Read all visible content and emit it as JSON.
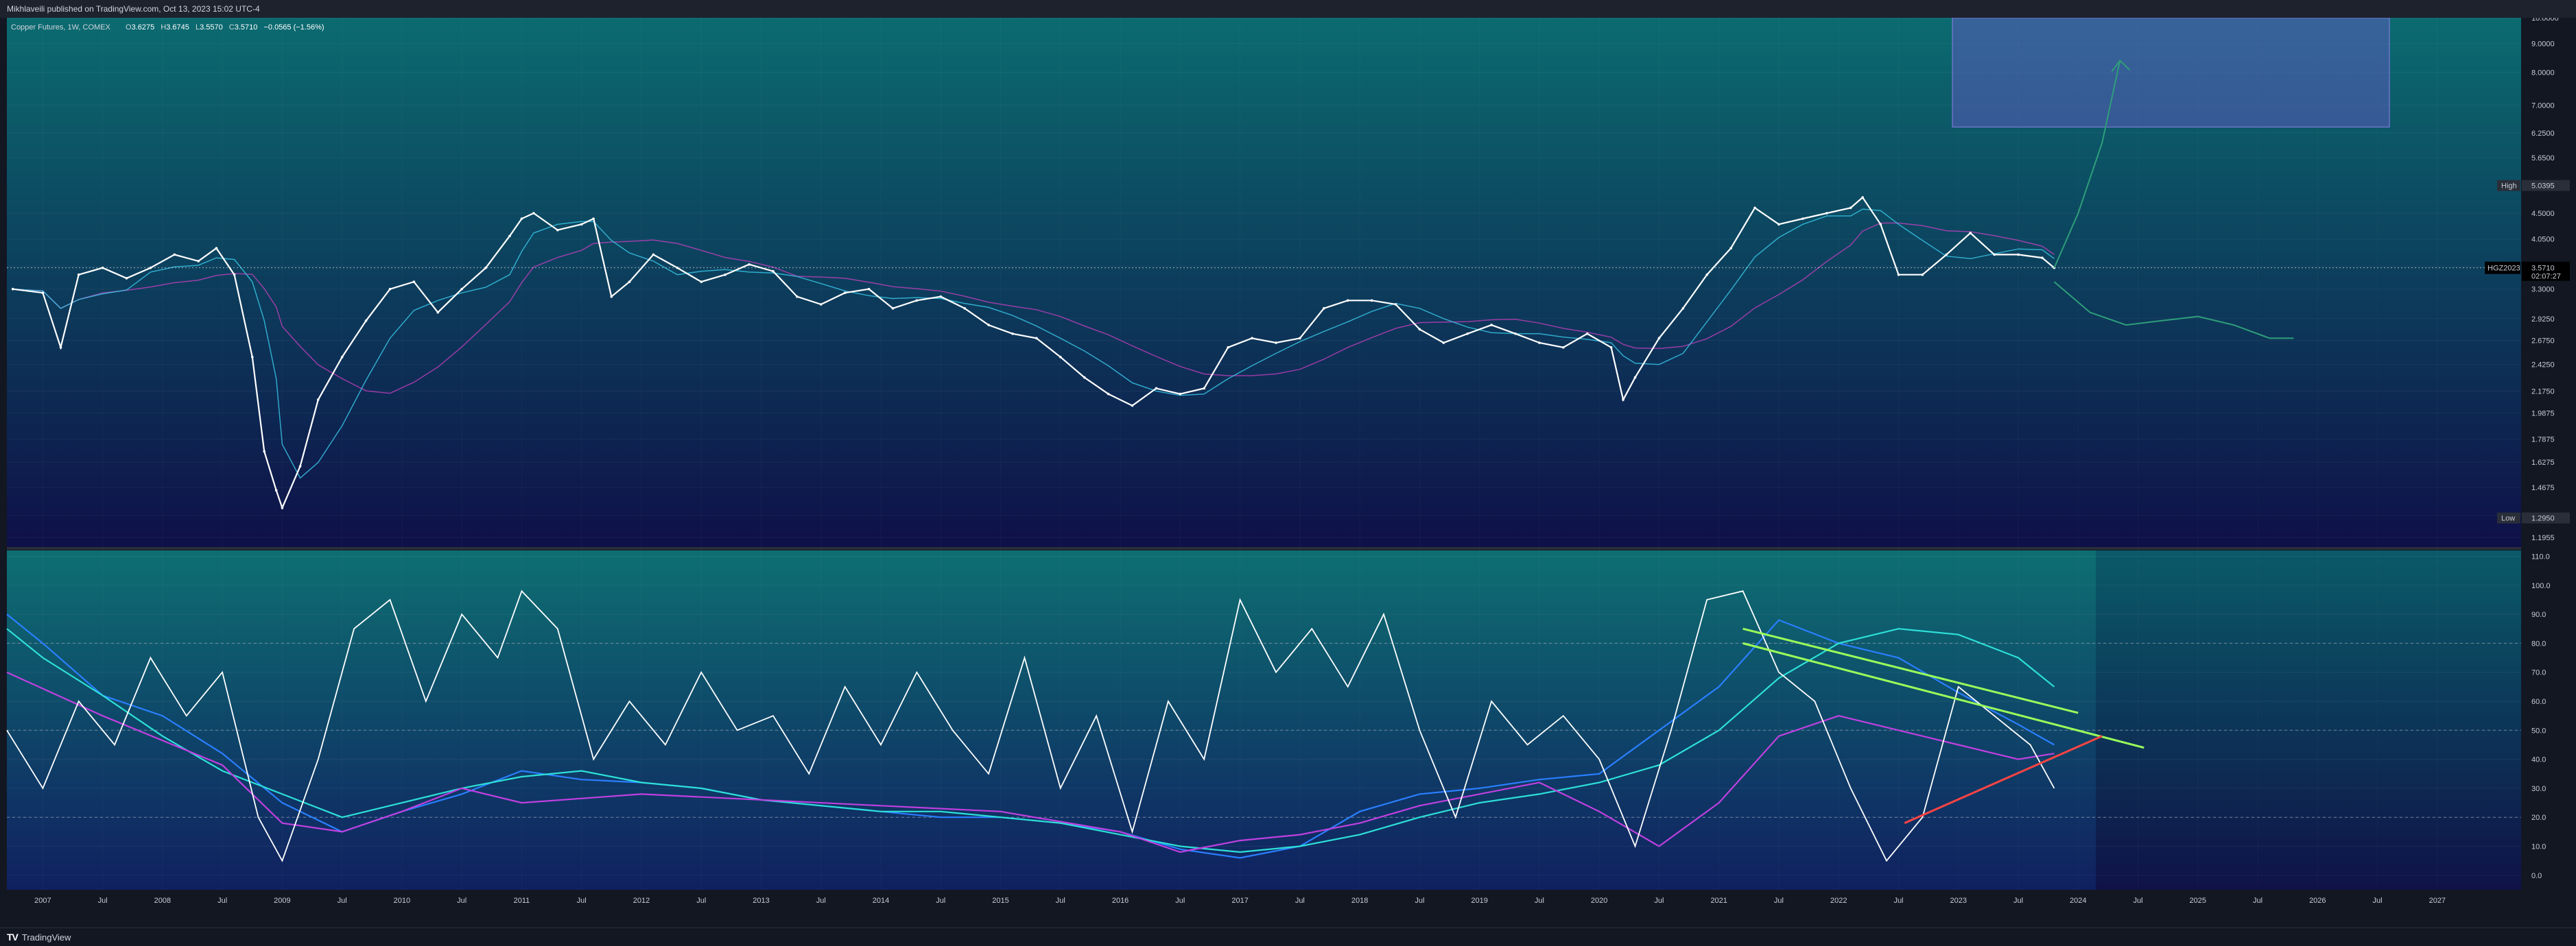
{
  "header": {
    "publisher": "Mikhlaveili published on TradingView.com, Oct 13, 2023 15:02 UTC-4"
  },
  "legend": {
    "symbol": "Copper Futures, 1W, COMEX",
    "open_label": "O",
    "open": "3.6275",
    "high_label": "H",
    "high": "3.6745",
    "low_label": "L",
    "low": "3.5570",
    "close_label": "C",
    "close": "3.5710",
    "change": "−0.0565 (−1.56%)"
  },
  "footer": {
    "brand": "TradingView"
  },
  "colors": {
    "price_bg_top": "#0b6b70",
    "price_bg_bottom": "#0e1048",
    "osc_bg_top": "#0d6f72",
    "osc_bg_bottom": "#102060",
    "target_box": "#6a5acd",
    "uptrend": "#9aff5a",
    "support": "#ff4444"
  },
  "chart_data": [
    {
      "type": "line",
      "title": "Copper Futures, 1W, COMEX",
      "scale": "log",
      "x_ticks": [
        "2007",
        "Jul",
        "2008",
        "Jul",
        "2009",
        "Jul",
        "2010",
        "Jul",
        "2011",
        "Jul",
        "2012",
        "Jul",
        "2013",
        "Jul",
        "2014",
        "Jul",
        "2015",
        "Jul",
        "2016",
        "Jul",
        "2017",
        "Jul",
        "2018",
        "Jul",
        "2019",
        "Jul",
        "2020",
        "Jul",
        "2021",
        "Jul",
        "2022",
        "Jul",
        "2023",
        "Jul",
        "2024",
        "Jul",
        "2025",
        "Jul",
        "2026",
        "Jul",
        "2027"
      ],
      "x_tick_years": [
        2007.0,
        2007.5,
        2008.0,
        2008.5,
        2009.0,
        2009.5,
        2010.0,
        2010.5,
        2011.0,
        2011.5,
        2012.0,
        2012.5,
        2013.0,
        2013.5,
        2014.0,
        2014.5,
        2015.0,
        2015.5,
        2016.0,
        2016.5,
        2017.0,
        2017.5,
        2018.0,
        2018.5,
        2019.0,
        2019.5,
        2020.0,
        2020.5,
        2021.0,
        2021.5,
        2022.0,
        2022.5,
        2023.0,
        2023.5,
        2024.0,
        2024.5,
        2025.0,
        2025.5,
        2026.0,
        2026.5,
        2027.0
      ],
      "y_ticks": [
        "10.0000",
        "9.0000",
        "8.0000",
        "7.0000",
        "6.2500",
        "5.6500",
        "4.5000",
        "4.0500",
        "3.6250",
        "3.3000",
        "2.9250",
        "2.6750",
        "2.4250",
        "2.1750",
        "1.9875",
        "1.7875",
        "1.6275",
        "1.4675",
        "1.3075",
        "1.1955"
      ],
      "y_tick_values": [
        10.0,
        9.0,
        8.0,
        7.0,
        6.25,
        5.65,
        4.5,
        4.05,
        3.625,
        3.3,
        2.925,
        2.675,
        2.425,
        2.175,
        1.9875,
        1.7875,
        1.6275,
        1.4675,
        1.3075,
        1.1955
      ],
      "ylim": [
        1.15,
        10.0
      ],
      "xlim": [
        2006.7,
        2027.7
      ],
      "series": [
        {
          "name": "HGZ2023",
          "x": [
            2006.75,
            2007.0,
            2007.15,
            2007.3,
            2007.5,
            2007.7,
            2007.9,
            2008.1,
            2008.3,
            2008.45,
            2008.6,
            2008.75,
            2008.85,
            2008.95,
            2009.0,
            2009.15,
            2009.3,
            2009.5,
            2009.7,
            2009.9,
            2010.1,
            2010.3,
            2010.5,
            2010.7,
            2010.9,
            2011.0,
            2011.1,
            2011.3,
            2011.5,
            2011.6,
            2011.75,
            2011.9,
            2012.1,
            2012.3,
            2012.5,
            2012.7,
            2012.9,
            2013.1,
            2013.3,
            2013.5,
            2013.7,
            2013.9,
            2014.1,
            2014.3,
            2014.5,
            2014.7,
            2014.9,
            2015.1,
            2015.3,
            2015.5,
            2015.7,
            2015.9,
            2016.1,
            2016.3,
            2016.5,
            2016.7,
            2016.9,
            2017.1,
            2017.3,
            2017.5,
            2017.7,
            2017.9,
            2018.1,
            2018.3,
            2018.5,
            2018.7,
            2018.9,
            2019.1,
            2019.3,
            2019.5,
            2019.7,
            2019.9,
            2020.1,
            2020.2,
            2020.3,
            2020.5,
            2020.7,
            2020.9,
            2021.1,
            2021.3,
            2021.5,
            2021.7,
            2021.9,
            2022.1,
            2022.2,
            2022.35,
            2022.5,
            2022.7,
            2022.9,
            2023.1,
            2023.3,
            2023.5,
            2023.7,
            2023.8
          ],
          "values": [
            3.3,
            3.25,
            2.6,
            3.5,
            3.6,
            3.45,
            3.6,
            3.8,
            3.7,
            3.9,
            3.5,
            2.5,
            1.7,
            1.45,
            1.35,
            1.6,
            2.1,
            2.5,
            2.9,
            3.3,
            3.4,
            3.0,
            3.3,
            3.6,
            4.1,
            4.4,
            4.5,
            4.2,
            4.3,
            4.4,
            3.2,
            3.4,
            3.8,
            3.6,
            3.4,
            3.5,
            3.65,
            3.55,
            3.2,
            3.1,
            3.25,
            3.3,
            3.05,
            3.15,
            3.2,
            3.05,
            2.85,
            2.75,
            2.7,
            2.5,
            2.3,
            2.15,
            2.05,
            2.2,
            2.15,
            2.2,
            2.6,
            2.7,
            2.65,
            2.7,
            3.05,
            3.15,
            3.15,
            3.1,
            2.8,
            2.65,
            2.75,
            2.85,
            2.75,
            2.65,
            2.6,
            2.75,
            2.6,
            2.1,
            2.3,
            2.7,
            3.05,
            3.5,
            3.9,
            4.6,
            4.3,
            4.4,
            4.5,
            4.6,
            4.8,
            4.3,
            3.5,
            3.5,
            3.8,
            4.15,
            3.8,
            3.8,
            3.75,
            3.6
          ]
        },
        {
          "name": "Projection up",
          "x": [
            2023.8,
            2024.0,
            2024.2,
            2024.35
          ],
          "values": [
            3.6,
            4.5,
            6.0,
            8.4
          ]
        },
        {
          "name": "Projection down",
          "x": [
            2023.8,
            2024.1,
            2024.4,
            2024.7,
            2025.0,
            2025.3,
            2025.6,
            2025.8
          ],
          "values": [
            3.4,
            3.0,
            2.85,
            2.9,
            2.95,
            2.85,
            2.7,
            2.7
          ]
        }
      ],
      "target_zone": {
        "x_start": 2022.95,
        "x_end": 2026.6,
        "y_low": 6.4,
        "y_high": 10.0
      },
      "markers": [
        {
          "label": "High",
          "value": "5.0395"
        },
        {
          "label": "HGZ2023",
          "value": "3.5710",
          "countdown": "02:07:27"
        },
        {
          "label": "Low",
          "value": "1.2950"
        }
      ]
    },
    {
      "type": "line",
      "title": "",
      "y_ticks": [
        "110.0",
        "100.0",
        "90.0",
        "80.0",
        "70.0",
        "60.0",
        "50.0",
        "40.0",
        "30.0",
        "20.0",
        "10.0",
        "0.0"
      ],
      "y_tick_values": [
        110,
        100,
        90,
        80,
        70,
        60,
        50,
        40,
        30,
        20,
        10,
        0
      ],
      "ylim": [
        -5,
        112
      ],
      "xlim": [
        2006.7,
        2027.7
      ],
      "levels": [
        80,
        50,
        20
      ],
      "series": [
        {
          "name": "",
          "x": [
            2006.7,
            2007.0,
            2007.5,
            2008.0,
            2008.5,
            2009.0,
            2009.5,
            2010.0,
            2010.5,
            2011.0,
            2011.5,
            2012.0,
            2012.5,
            2013.0,
            2013.5,
            2014.0,
            2014.5,
            2015.0,
            2015.5,
            2016.0,
            2016.5,
            2017.0,
            2017.5,
            2018.0,
            2018.5,
            2019.0,
            2019.5,
            2020.0,
            2020.5,
            2021.0,
            2021.5,
            2022.0,
            2022.5,
            2023.0,
            2023.5,
            2023.8
          ],
          "values": [
            90,
            80,
            62,
            55,
            42,
            25,
            15,
            22,
            28,
            36,
            33,
            32,
            30,
            26,
            24,
            22,
            20,
            20,
            18,
            15,
            9,
            6,
            10,
            22,
            28,
            30,
            33,
            35,
            50,
            65,
            88,
            80,
            75,
            63,
            52,
            45
          ]
        },
        {
          "name": "",
          "x": [
            2006.7,
            2007.0,
            2007.5,
            2008.0,
            2008.5,
            2009.0,
            2009.5,
            2010.0,
            2010.5,
            2011.0,
            2011.5,
            2012.0,
            2012.5,
            2013.0,
            2013.5,
            2014.0,
            2014.5,
            2015.0,
            2015.5,
            2016.0,
            2016.5,
            2017.0,
            2017.5,
            2018.0,
            2018.5,
            2019.0,
            2019.5,
            2020.0,
            2020.5,
            2021.0,
            2021.5,
            2022.0,
            2022.5,
            2023.0,
            2023.5,
            2023.8
          ],
          "values": [
            85,
            75,
            62,
            48,
            36,
            28,
            20,
            25,
            30,
            34,
            36,
            32,
            30,
            26,
            24,
            22,
            22,
            20,
            18,
            14,
            10,
            8,
            10,
            14,
            20,
            25,
            28,
            32,
            38,
            50,
            68,
            80,
            85,
            83,
            75,
            65
          ]
        },
        {
          "name": "",
          "x": [
            2006.7,
            2007.5,
            2008.5,
            2009.0,
            2009.5,
            2010.0,
            2010.5,
            2011.0,
            2012.0,
            2013.0,
            2014.0,
            2015.0,
            2016.0,
            2016.5,
            2017.0,
            2017.5,
            2018.0,
            2018.5,
            2019.0,
            2019.5,
            2020.0,
            2020.5,
            2021.0,
            2021.5,
            2022.0,
            2022.5,
            2023.0,
            2023.5,
            2023.8
          ],
          "values": [
            70,
            55,
            38,
            18,
            15,
            22,
            30,
            25,
            28,
            26,
            24,
            22,
            15,
            8,
            12,
            14,
            18,
            24,
            28,
            32,
            22,
            10,
            25,
            48,
            55,
            50,
            45,
            40,
            42
          ]
        },
        {
          "name": "",
          "x": [
            2006.7,
            2007.0,
            2007.3,
            2007.6,
            2007.9,
            2008.2,
            2008.5,
            2008.8,
            2009.0,
            2009.3,
            2009.6,
            2009.9,
            2010.2,
            2010.5,
            2010.8,
            2011.0,
            2011.3,
            2011.6,
            2011.9,
            2012.2,
            2012.5,
            2012.8,
            2013.1,
            2013.4,
            2013.7,
            2014.0,
            2014.3,
            2014.6,
            2014.9,
            2015.2,
            2015.5,
            2015.8,
            2016.1,
            2016.4,
            2016.7,
            2017.0,
            2017.3,
            2017.6,
            2017.9,
            2018.2,
            2018.5,
            2018.8,
            2019.1,
            2019.4,
            2019.7,
            2020.0,
            2020.3,
            2020.6,
            2020.9,
            2021.2,
            2021.5,
            2021.8,
            2022.1,
            2022.4,
            2022.7,
            2023.0,
            2023.3,
            2023.6,
            2023.8
          ],
          "values": [
            50,
            30,
            60,
            45,
            75,
            55,
            70,
            20,
            5,
            40,
            85,
            95,
            60,
            90,
            75,
            98,
            85,
            40,
            60,
            45,
            70,
            50,
            55,
            35,
            65,
            45,
            70,
            50,
            35,
            75,
            30,
            55,
            15,
            60,
            40,
            95,
            70,
            85,
            65,
            90,
            50,
            20,
            60,
            45,
            55,
            40,
            10,
            50,
            95,
            98,
            70,
            60,
            30,
            5,
            20,
            65,
            55,
            45,
            30
          ]
        }
      ],
      "trendlines": [
        {
          "kind": "uptrend",
          "x": [
            2021.2,
            2024.0
          ],
          "values": [
            85,
            56
          ]
        },
        {
          "kind": "uptrend",
          "x": [
            2021.2,
            2024.55
          ],
          "values": [
            80,
            44
          ]
        },
        {
          "kind": "support",
          "x": [
            2022.55,
            2024.2
          ],
          "values": [
            18,
            48
          ]
        }
      ]
    }
  ]
}
